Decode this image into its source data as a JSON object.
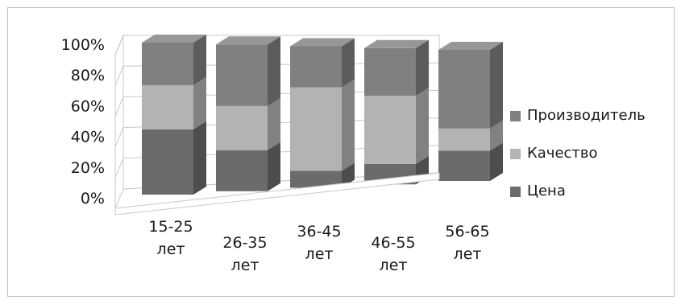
{
  "chart_data": {
    "type": "bar",
    "stacked": "percent",
    "style": "3d-column",
    "categories": [
      [
        "15-25",
        "лет"
      ],
      [
        "26-35",
        "лет"
      ],
      [
        "36-45",
        "лет"
      ],
      [
        "46-55",
        "лет"
      ],
      [
        "56-65",
        "лет"
      ]
    ],
    "series": [
      {
        "name": "Цена",
        "color": "#6b6b6b",
        "values": [
          43,
          28,
          12,
          15,
          23
        ]
      },
      {
        "name": "Качество",
        "color": "#b3b3b3",
        "values": [
          29,
          30,
          59,
          50,
          17
        ]
      },
      {
        "name": "Производитель",
        "color": "#808080",
        "values": [
          28,
          42,
          29,
          35,
          60
        ]
      }
    ],
    "ylim": [
      0,
      100
    ],
    "yticks": [
      "0%",
      "20%",
      "40%",
      "60%",
      "80%",
      "100%"
    ],
    "grid": true,
    "legend_position": "right",
    "legend_order": [
      "Производитель",
      "Качество",
      "Цена"
    ]
  }
}
